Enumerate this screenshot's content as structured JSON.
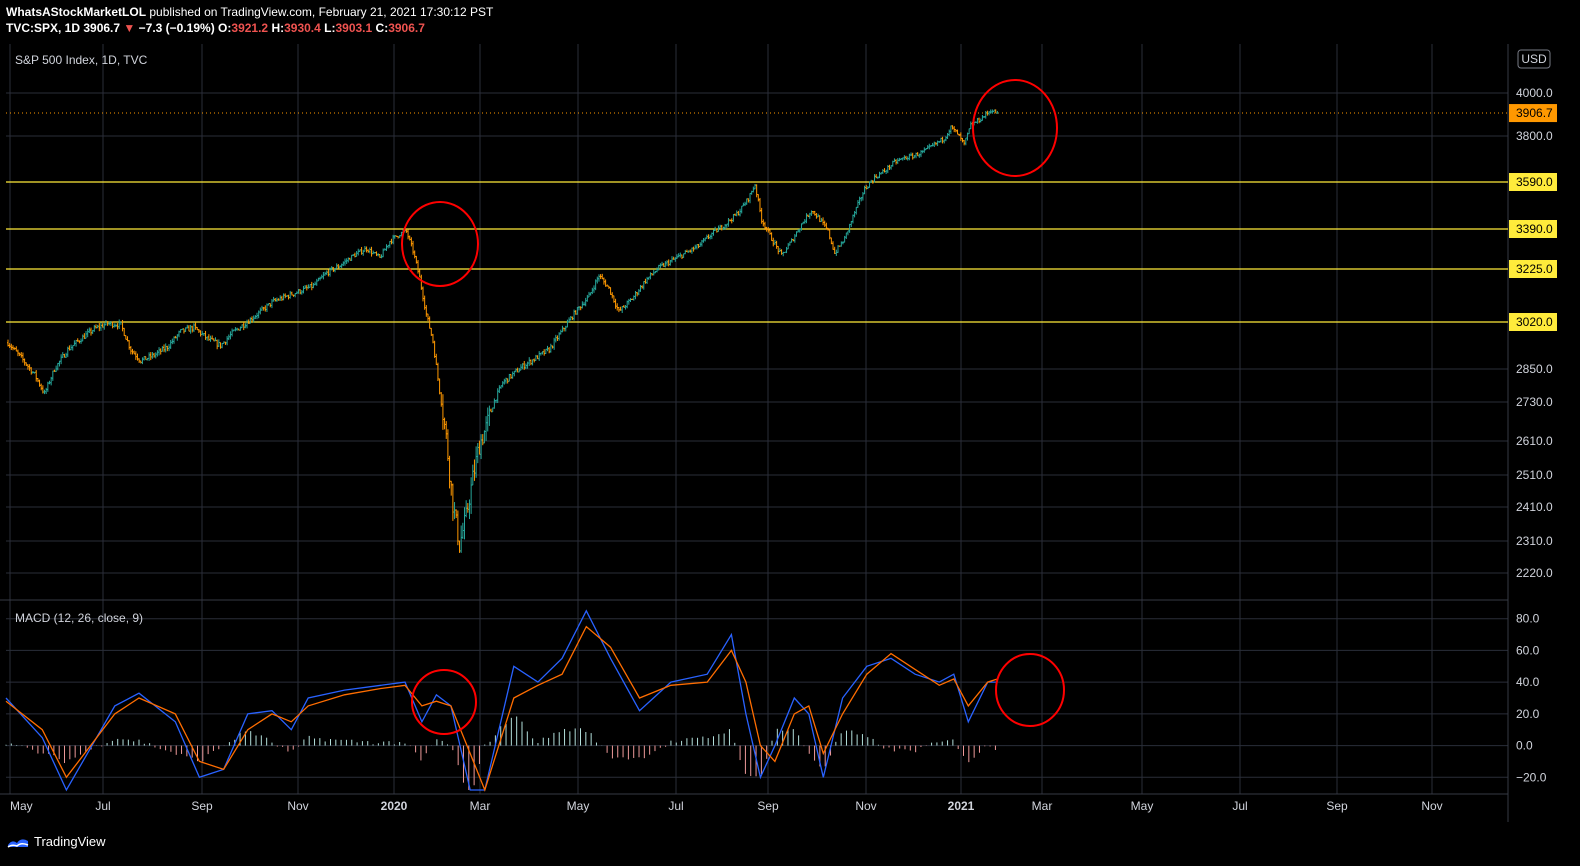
{
  "header": {
    "author": "WhatsAStockMarketLOL",
    "published": "published on TradingView.com, February 21, 2021 17:30:12 PST",
    "symbol": "TVC:SPX, 1D",
    "last": "3906.7",
    "change_arrow": "▼",
    "change": "−7.3 (−0.19%)",
    "o_label": "O:",
    "o": "3921.2",
    "h_label": "H:",
    "h": "3930.4",
    "l_label": "L:",
    "l": "3903.1",
    "c_label": "C:",
    "c": "3906.7"
  },
  "currency_button": "USD",
  "footer": {
    "brand": "TradingView"
  },
  "colors": {
    "background": "#000000",
    "grid": "#2a2e39",
    "up": "#26a69a",
    "down": "#ff9800",
    "level": "#ffeb3b",
    "macd": "#2962ff",
    "signal": "#ff6d00",
    "hist_pos": "#b2dfdb",
    "hist_neg": "#ef9a9a",
    "annotation": "#ff0000",
    "last_price": "#ff9800"
  },
  "chart_data": [
    {
      "type": "candlestick",
      "title": "S&P 500 Index, 1D, TVC",
      "ylim": [
        2150,
        4120
      ],
      "yticks": [
        4000.0,
        3800.0,
        2850.0,
        2730.0,
        2610.0,
        2510.0,
        2410.0,
        2310.0,
        2220.0
      ],
      "ytick_labels": [
        "4000.0",
        "3800.0",
        "2850.0",
        "2730.0",
        "2610.0",
        "2510.0",
        "2410.0",
        "2310.0",
        "2220.0"
      ],
      "x_labels": [
        "May",
        "Jul",
        "Sep",
        "Nov",
        "2020",
        "Mar",
        "May",
        "Jul",
        "Sep",
        "Nov",
        "2021",
        "Mar",
        "May",
        "Jul",
        "Sep",
        "Nov"
      ],
      "x_label_bold": [
        false,
        false,
        false,
        false,
        true,
        false,
        false,
        false,
        false,
        false,
        true,
        false,
        false,
        false,
        false,
        false
      ],
      "levels": [
        3590.0,
        3390.0,
        3225.0,
        3020.0
      ],
      "level_labels": [
        "3590.0",
        "3390.0",
        "3225.0",
        "3020.0"
      ],
      "last_price": 3906.7,
      "last_price_label": "3906.7",
      "price_path": [
        [
          0,
          2945
        ],
        [
          8,
          2890
        ],
        [
          16,
          2830
        ],
        [
          22,
          2760
        ],
        [
          28,
          2850
        ],
        [
          36,
          2920
        ],
        [
          44,
          2960
        ],
        [
          52,
          2995
        ],
        [
          60,
          3015
        ],
        [
          68,
          3010
        ],
        [
          74,
          2920
        ],
        [
          80,
          2880
        ],
        [
          88,
          2900
        ],
        [
          96,
          2930
        ],
        [
          104,
          2985
        ],
        [
          112,
          3000
        ],
        [
          120,
          2960
        ],
        [
          128,
          2935
        ],
        [
          136,
          2985
        ],
        [
          144,
          3020
        ],
        [
          152,
          3060
        ],
        [
          160,
          3100
        ],
        [
          168,
          3120
        ],
        [
          176,
          3140
        ],
        [
          184,
          3160
        ],
        [
          192,
          3210
        ],
        [
          200,
          3240
        ],
        [
          208,
          3280
        ],
        [
          216,
          3310
        ],
        [
          224,
          3270
        ],
        [
          230,
          3340
        ],
        [
          236,
          3370
        ],
        [
          240,
          3380
        ],
        [
          244,
          3300
        ],
        [
          248,
          3190
        ],
        [
          252,
          3050
        ],
        [
          256,
          2950
        ],
        [
          260,
          2770
        ],
        [
          264,
          2620
        ],
        [
          268,
          2420
        ],
        [
          272,
          2300
        ],
        [
          276,
          2380
        ],
        [
          280,
          2500
        ],
        [
          284,
          2600
        ],
        [
          288,
          2650
        ],
        [
          292,
          2720
        ],
        [
          298,
          2800
        ],
        [
          304,
          2830
        ],
        [
          310,
          2860
        ],
        [
          318,
          2890
        ],
        [
          326,
          2920
        ],
        [
          334,
          2990
        ],
        [
          342,
          3060
        ],
        [
          350,
          3120
        ],
        [
          356,
          3200
        ],
        [
          362,
          3150
        ],
        [
          368,
          3060
        ],
        [
          376,
          3110
        ],
        [
          384,
          3180
        ],
        [
          392,
          3230
        ],
        [
          400,
          3260
        ],
        [
          408,
          3290
        ],
        [
          416,
          3320
        ],
        [
          424,
          3370
        ],
        [
          432,
          3410
        ],
        [
          440,
          3460
        ],
        [
          446,
          3520
        ],
        [
          450,
          3580
        ],
        [
          454,
          3430
        ],
        [
          460,
          3350
        ],
        [
          466,
          3280
        ],
        [
          472,
          3340
        ],
        [
          478,
          3410
        ],
        [
          484,
          3470
        ],
        [
          488,
          3440
        ],
        [
          494,
          3380
        ],
        [
          498,
          3290
        ],
        [
          504,
          3350
        ],
        [
          510,
          3460
        ],
        [
          516,
          3560
        ],
        [
          522,
          3610
        ],
        [
          528,
          3640
        ],
        [
          534,
          3680
        ],
        [
          540,
          3700
        ],
        [
          546,
          3710
        ],
        [
          552,
          3730
        ],
        [
          558,
          3760
        ],
        [
          564,
          3790
        ],
        [
          568,
          3840
        ],
        [
          572,
          3810
        ],
        [
          576,
          3760
        ],
        [
          580,
          3850
        ],
        [
          586,
          3880
        ],
        [
          592,
          3920
        ],
        [
          596,
          3906.7
        ]
      ],
      "annotations": [
        "circle",
        "circle"
      ]
    },
    {
      "type": "line",
      "title": "MACD (12, 26, close, 9)",
      "ylim": [
        -28,
        88
      ],
      "yticks": [
        80.0,
        60.0,
        40.0,
        20.0,
        0.0,
        -20.0
      ],
      "ytick_labels": [
        "80.0",
        "60.0",
        "40.0",
        "20.0",
        "0.0",
        "−20.0"
      ],
      "series": [
        {
          "key": "macd",
          "points": [
            [
              0,
              30
            ],
            [
              15,
              5
            ],
            [
              25,
              -30
            ],
            [
              45,
              25
            ],
            [
              55,
              33
            ],
            [
              70,
              15
            ],
            [
              80,
              -20
            ],
            [
              90,
              -15
            ],
            [
              100,
              20
            ],
            [
              110,
              22
            ],
            [
              118,
              10
            ],
            [
              125,
              30
            ],
            [
              140,
              35
            ],
            [
              155,
              38
            ],
            [
              165,
              40
            ],
            [
              172,
              15
            ],
            [
              178,
              32
            ],
            [
              184,
              25
            ],
            [
              192,
              -40
            ],
            [
              198,
              -40
            ],
            [
              210,
              50
            ],
            [
              220,
              40
            ],
            [
              230,
              55
            ],
            [
              240,
              85
            ],
            [
              250,
              55
            ],
            [
              262,
              22
            ],
            [
              275,
              40
            ],
            [
              290,
              45
            ],
            [
              300,
              70
            ],
            [
              306,
              20
            ],
            [
              312,
              -20
            ],
            [
              318,
              0
            ],
            [
              326,
              30
            ],
            [
              332,
              20
            ],
            [
              338,
              -20
            ],
            [
              346,
              30
            ],
            [
              356,
              50
            ],
            [
              366,
              55
            ],
            [
              376,
              45
            ],
            [
              386,
              40
            ],
            [
              392,
              45
            ],
            [
              398,
              15
            ],
            [
              406,
              40
            ],
            [
              410,
              40
            ]
          ]
        },
        {
          "key": "signal",
          "points": [
            [
              0,
              28
            ],
            [
              15,
              10
            ],
            [
              25,
              -20
            ],
            [
              45,
              20
            ],
            [
              55,
              30
            ],
            [
              70,
              20
            ],
            [
              80,
              -10
            ],
            [
              90,
              -15
            ],
            [
              100,
              10
            ],
            [
              110,
              20
            ],
            [
              118,
              15
            ],
            [
              125,
              25
            ],
            [
              140,
              32
            ],
            [
              155,
              36
            ],
            [
              165,
              38
            ],
            [
              172,
              25
            ],
            [
              178,
              28
            ],
            [
              184,
              25
            ],
            [
              192,
              -5
            ],
            [
              198,
              -40
            ],
            [
              210,
              30
            ],
            [
              220,
              38
            ],
            [
              230,
              45
            ],
            [
              240,
              75
            ],
            [
              250,
              62
            ],
            [
              262,
              30
            ],
            [
              275,
              38
            ],
            [
              290,
              40
            ],
            [
              300,
              60
            ],
            [
              306,
              40
            ],
            [
              312,
              0
            ],
            [
              318,
              -10
            ],
            [
              326,
              20
            ],
            [
              332,
              25
            ],
            [
              338,
              -5
            ],
            [
              346,
              20
            ],
            [
              356,
              45
            ],
            [
              366,
              58
            ],
            [
              376,
              48
            ],
            [
              386,
              38
            ],
            [
              392,
              42
            ],
            [
              398,
              25
            ],
            [
              406,
              40
            ],
            [
              410,
              42
            ]
          ]
        }
      ]
    }
  ]
}
